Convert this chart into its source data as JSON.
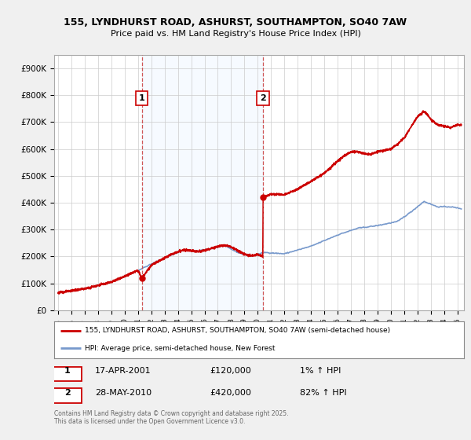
{
  "title1": "155, LYNDHURST ROAD, ASHURST, SOUTHAMPTON, SO40 7AW",
  "title2": "Price paid vs. HM Land Registry's House Price Index (HPI)",
  "ylim": [
    0,
    950000
  ],
  "yticks": [
    0,
    100000,
    200000,
    300000,
    400000,
    500000,
    600000,
    700000,
    800000,
    900000
  ],
  "ytick_labels": [
    "£0",
    "£100K",
    "£200K",
    "£300K",
    "£400K",
    "£500K",
    "£600K",
    "£700K",
    "£800K",
    "£900K"
  ],
  "xlim_start": 1994.7,
  "xlim_end": 2025.5,
  "sale1_x": 2001.29,
  "sale1_y": 120000,
  "sale2_x": 2010.41,
  "sale2_y": 420000,
  "sale1_label": "17-APR-2001",
  "sale2_label": "28-MAY-2010",
  "sale1_price": "£120,000",
  "sale2_price": "£420,000",
  "sale1_hpi": "1% ↑ HPI",
  "sale2_hpi": "82% ↑ HPI",
  "line1_color": "#cc0000",
  "line2_color": "#7799cc",
  "vline_color": "#cc4444",
  "shade_color": "#ddeeff",
  "legend1": "155, LYNDHURST ROAD, ASHURST, SOUTHAMPTON, SO40 7AW (semi-detached house)",
  "legend2": "HPI: Average price, semi-detached house, New Forest",
  "footnote": "Contains HM Land Registry data © Crown copyright and database right 2025.\nThis data is licensed under the Open Government Licence v3.0.",
  "fig_bg": "#f0f0f0",
  "plot_bg": "#ffffff"
}
